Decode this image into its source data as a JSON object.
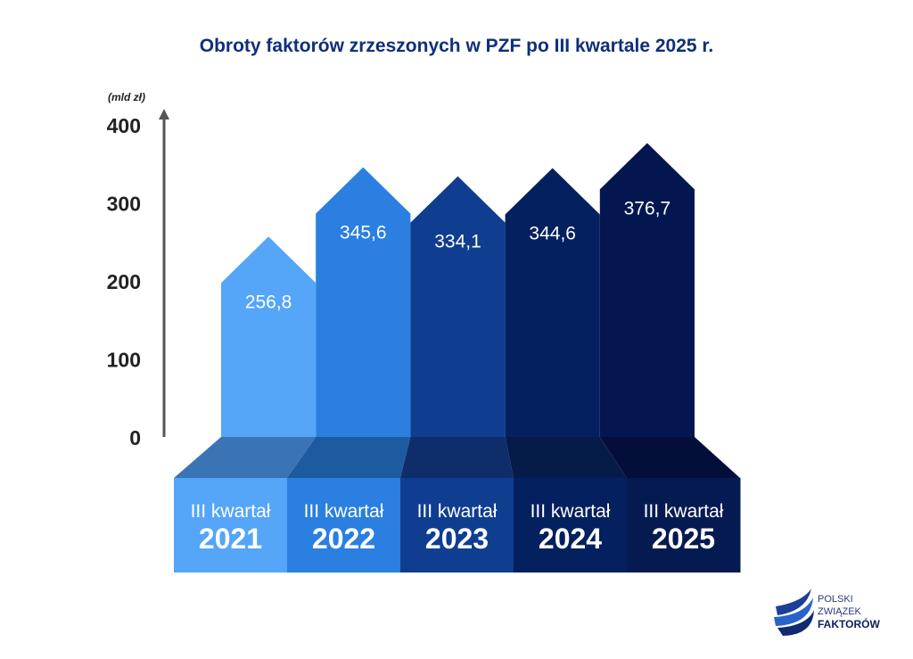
{
  "chart_data": {
    "type": "bar",
    "title": "Obroty faktorów zrzeszonych w PZF po III kwartale 2025 r.",
    "ylabel": "(mld zł)",
    "xlabel": "",
    "ylim": [
      0,
      400
    ],
    "yticks": [
      "0",
      "100",
      "200",
      "300",
      "400"
    ],
    "categories": [
      {
        "quarter": "III kwartał",
        "year": "2021"
      },
      {
        "quarter": "III kwartał",
        "year": "2022"
      },
      {
        "quarter": "III kwartał",
        "year": "2023"
      },
      {
        "quarter": "III kwartał",
        "year": "2024"
      },
      {
        "quarter": "III kwartał",
        "year": "2025"
      }
    ],
    "values": [
      256.8,
      345.6,
      334.1,
      344.6,
      376.7
    ],
    "value_labels": [
      "256,8",
      "345,6",
      "334,1",
      "344,6",
      "376,7"
    ],
    "colors": [
      "#55a5f9",
      "#2a7fe0",
      "#0f3e91",
      "#04205e",
      "#031650"
    ],
    "base_top_colors": [
      "#3a74b4",
      "#1e5aa0",
      "#0e2d6a",
      "#061c48",
      "#030f3a"
    ],
    "grid": false,
    "legend": "none"
  },
  "logo": {
    "line1": "POLSKI",
    "line2": "ZWIĄZEK",
    "line3": "FAKTORÓW"
  }
}
